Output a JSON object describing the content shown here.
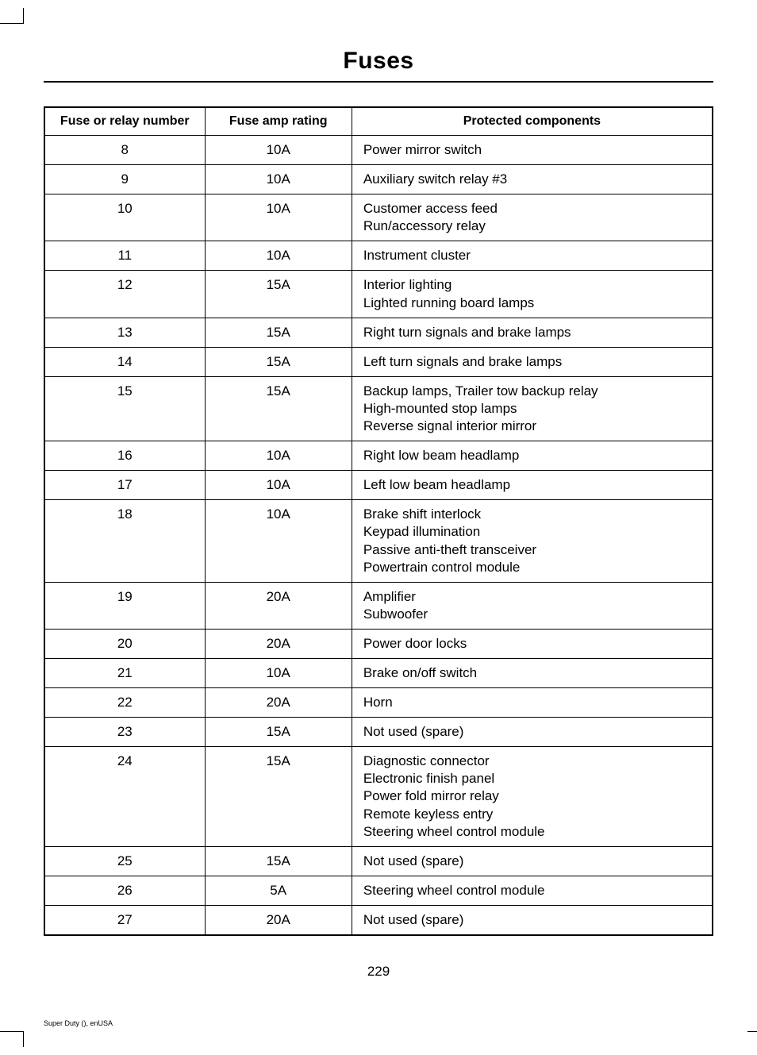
{
  "page_title": "Fuses",
  "page_number": "229",
  "footer": "Super Duty (), enUSA",
  "table": {
    "columns": [
      "Fuse or relay number",
      "Fuse amp rating",
      "Protected components"
    ],
    "rows": [
      [
        "8",
        "10A",
        "Power mirror switch"
      ],
      [
        "9",
        "10A",
        "Auxiliary switch relay #3"
      ],
      [
        "10",
        "10A",
        "Customer access feed\nRun/accessory relay"
      ],
      [
        "11",
        "10A",
        "Instrument cluster"
      ],
      [
        "12",
        "15A",
        "Interior lighting\nLighted running board lamps"
      ],
      [
        "13",
        "15A",
        "Right turn signals and brake lamps"
      ],
      [
        "14",
        "15A",
        "Left turn signals and brake lamps"
      ],
      [
        "15",
        "15A",
        "Backup lamps, Trailer tow backup relay\nHigh-mounted stop lamps\nReverse signal interior mirror"
      ],
      [
        "16",
        "10A",
        "Right low beam headlamp"
      ],
      [
        "17",
        "10A",
        "Left low beam headlamp"
      ],
      [
        "18",
        "10A",
        "Brake shift interlock\nKeypad illumination\nPassive anti-theft transceiver\nPowertrain control module"
      ],
      [
        "19",
        "20A",
        "Amplifier\nSubwoofer"
      ],
      [
        "20",
        "20A",
        "Power door locks"
      ],
      [
        "21",
        "10A",
        "Brake on/off switch"
      ],
      [
        "22",
        "20A",
        "Horn"
      ],
      [
        "23",
        "15A",
        "Not used (spare)"
      ],
      [
        "24",
        "15A",
        "Diagnostic connector\nElectronic finish panel\nPower fold mirror relay\nRemote keyless entry\nSteering wheel control module"
      ],
      [
        "25",
        "15A",
        "Not used (spare)"
      ],
      [
        "26",
        "5A",
        "Steering wheel control module"
      ],
      [
        "27",
        "20A",
        "Not used (spare)"
      ]
    ]
  },
  "styling": {
    "background_color": "#ffffff",
    "text_color": "#000000",
    "border_color": "#000000",
    "title_fontsize": 30,
    "header_fontsize": 16,
    "cell_fontsize": 17,
    "page_number_fontsize": 17,
    "footer_fontsize": 9,
    "column_widths_pct": [
      24,
      22,
      54
    ],
    "column_alignments": [
      "center",
      "center",
      "left"
    ]
  }
}
